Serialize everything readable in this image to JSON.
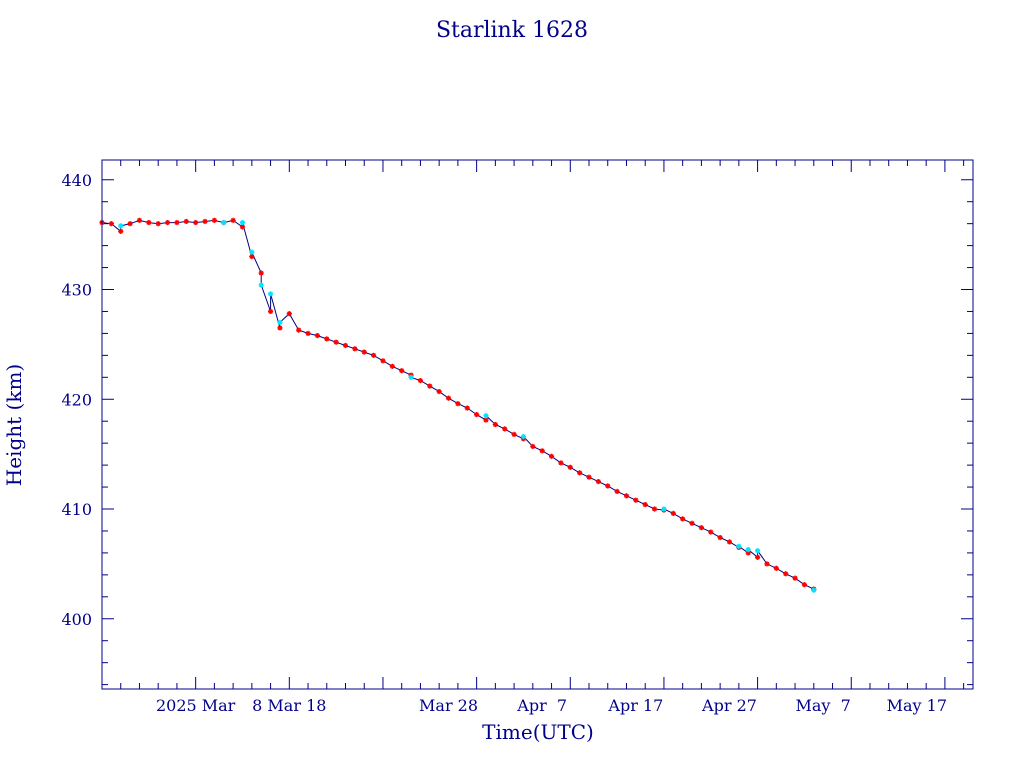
{
  "chart_data": {
    "type": "scatter",
    "title": "Starlink 1628",
    "xlabel": "Time(UTC)",
    "ylabel": "Height (km)",
    "x_axis": {
      "type": "date",
      "range": [
        "2025-02-19",
        "2025-05-23"
      ],
      "tick_labels": [
        {
          "date": "2025-03-01",
          "label": "2025 Mar"
        },
        {
          "date": "2025-03-11",
          "label": "8 Mar 18"
        },
        {
          "date": "2025-03-28",
          "label": "Mar 28"
        },
        {
          "date": "2025-04-07",
          "label": "Apr  7"
        },
        {
          "date": "2025-04-17",
          "label": "Apr 17"
        },
        {
          "date": "2025-04-27",
          "label": "Apr 27"
        },
        {
          "date": "2025-05-07",
          "label": "May  7"
        },
        {
          "date": "2025-05-17",
          "label": "May 17"
        }
      ]
    },
    "y_axis": {
      "range": [
        393.6,
        441.8
      ],
      "major_ticks": [
        400,
        410,
        420,
        430,
        440
      ],
      "minor_step": 2,
      "tick_labels": [
        "400",
        "410",
        "420",
        "430",
        "440"
      ]
    },
    "grid": false,
    "colors": {
      "frame": "#00008b",
      "line": "#000080",
      "marker_red": "#ff0000",
      "marker_cyan": "#00e5ff"
    },
    "series": [
      {
        "marker": "red-star",
        "points": [
          [
            "2025-02-19",
            436.1
          ],
          [
            "2025-02-20",
            436.0
          ],
          [
            "2025-02-21",
            435.3
          ],
          [
            "2025-02-22",
            436.0
          ],
          [
            "2025-02-23",
            436.3
          ],
          [
            "2025-02-24",
            436.1
          ],
          [
            "2025-02-25",
            436.0
          ],
          [
            "2025-02-26",
            436.1
          ],
          [
            "2025-02-27",
            436.1
          ],
          [
            "2025-02-28",
            436.2
          ],
          [
            "2025-03-01",
            436.1
          ],
          [
            "2025-03-02",
            436.2
          ],
          [
            "2025-03-03",
            436.3
          ],
          [
            "2025-03-04",
            436.1
          ],
          [
            "2025-03-05",
            436.3
          ],
          [
            "2025-03-06",
            435.7
          ],
          [
            "2025-03-07",
            433.0
          ],
          [
            "2025-03-08",
            431.5
          ],
          [
            "2025-03-09",
            428.0
          ],
          [
            "2025-03-10",
            426.5
          ],
          [
            "2025-03-11",
            427.8
          ],
          [
            "2025-03-12",
            426.3
          ],
          [
            "2025-03-13",
            426.0
          ],
          [
            "2025-03-14",
            425.8
          ],
          [
            "2025-03-15",
            425.5
          ],
          [
            "2025-03-16",
            425.2
          ],
          [
            "2025-03-17",
            424.9
          ],
          [
            "2025-03-18",
            424.6
          ],
          [
            "2025-03-19",
            424.3
          ],
          [
            "2025-03-20",
            424.0
          ],
          [
            "2025-03-21",
            423.5
          ],
          [
            "2025-03-22",
            423.0
          ],
          [
            "2025-03-23",
            422.6
          ],
          [
            "2025-03-24",
            422.2
          ],
          [
            "2025-03-25",
            421.7
          ],
          [
            "2025-03-26",
            421.2
          ],
          [
            "2025-03-27",
            420.7
          ],
          [
            "2025-03-28",
            420.1
          ],
          [
            "2025-03-29",
            419.6
          ],
          [
            "2025-03-30",
            419.2
          ],
          [
            "2025-03-31",
            418.6
          ],
          [
            "2025-04-01",
            418.1
          ],
          [
            "2025-04-02",
            417.7
          ],
          [
            "2025-04-03",
            417.3
          ],
          [
            "2025-04-04",
            416.8
          ],
          [
            "2025-04-05",
            416.4
          ],
          [
            "2025-04-06",
            415.7
          ],
          [
            "2025-04-07",
            415.3
          ],
          [
            "2025-04-08",
            414.8
          ],
          [
            "2025-04-09",
            414.2
          ],
          [
            "2025-04-10",
            413.8
          ],
          [
            "2025-04-11",
            413.3
          ],
          [
            "2025-04-12",
            412.9
          ],
          [
            "2025-04-13",
            412.5
          ],
          [
            "2025-04-14",
            412.1
          ],
          [
            "2025-04-15",
            411.6
          ],
          [
            "2025-04-16",
            411.2
          ],
          [
            "2025-04-17",
            410.8
          ],
          [
            "2025-04-18",
            410.4
          ],
          [
            "2025-04-19",
            410.0
          ],
          [
            "2025-04-20",
            409.9
          ],
          [
            "2025-04-21",
            409.6
          ],
          [
            "2025-04-22",
            409.1
          ],
          [
            "2025-04-23",
            408.7
          ],
          [
            "2025-04-24",
            408.3
          ],
          [
            "2025-04-25",
            407.9
          ],
          [
            "2025-04-26",
            407.4
          ],
          [
            "2025-04-27",
            407.0
          ],
          [
            "2025-04-28",
            406.5
          ],
          [
            "2025-04-29",
            406.0
          ],
          [
            "2025-04-30",
            405.6
          ],
          [
            "2025-05-01",
            405.0
          ],
          [
            "2025-05-02",
            404.6
          ],
          [
            "2025-05-03",
            404.1
          ],
          [
            "2025-05-04",
            403.7
          ],
          [
            "2025-05-05",
            403.1
          ],
          [
            "2025-05-06",
            402.7
          ]
        ]
      },
      {
        "marker": "cyan-star",
        "points": [
          [
            "2025-02-21",
            435.8
          ],
          [
            "2025-03-04",
            436.1
          ],
          [
            "2025-03-06",
            436.1
          ],
          [
            "2025-03-07",
            433.4
          ],
          [
            "2025-03-08",
            430.4
          ],
          [
            "2025-03-09",
            429.6
          ],
          [
            "2025-03-10",
            427.0
          ],
          [
            "2025-03-24",
            422.0
          ],
          [
            "2025-04-01",
            418.5
          ],
          [
            "2025-04-05",
            416.6
          ],
          [
            "2025-04-20",
            410.0
          ],
          [
            "2025-04-28",
            406.6
          ],
          [
            "2025-04-29",
            406.3
          ],
          [
            "2025-04-30",
            406.2
          ],
          [
            "2025-05-06",
            402.6
          ]
        ]
      }
    ]
  }
}
